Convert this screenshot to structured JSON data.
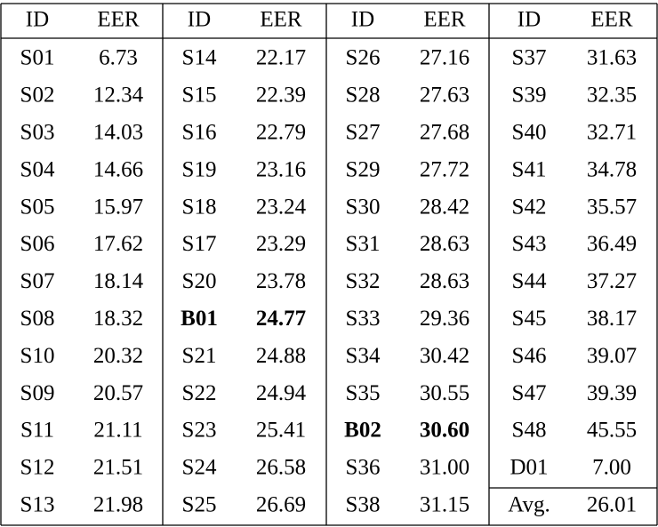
{
  "table": {
    "header": [
      "ID",
      "EER",
      "ID",
      "EER",
      "ID",
      "EER",
      "ID",
      "EER"
    ],
    "rows": [
      [
        "S01",
        "6.73",
        "S14",
        "22.17",
        "S26",
        "27.16",
        "S37",
        "31.63"
      ],
      [
        "S02",
        "12.34",
        "S15",
        "22.39",
        "S28",
        "27.63",
        "S39",
        "32.35"
      ],
      [
        "S03",
        "14.03",
        "S16",
        "22.79",
        "S27",
        "27.68",
        "S40",
        "32.71"
      ],
      [
        "S04",
        "14.66",
        "S19",
        "23.16",
        "S29",
        "27.72",
        "S41",
        "34.78"
      ],
      [
        "S05",
        "15.97",
        "S18",
        "23.24",
        "S30",
        "28.42",
        "S42",
        "35.57"
      ],
      [
        "S06",
        "17.62",
        "S17",
        "23.29",
        "S31",
        "28.63",
        "S43",
        "36.49"
      ],
      [
        "S07",
        "18.14",
        "S20",
        "23.78",
        "S32",
        "28.63",
        "S44",
        "37.27"
      ],
      [
        "S08",
        "18.32",
        "B01",
        "24.77",
        "S33",
        "29.36",
        "S45",
        "38.17"
      ],
      [
        "S10",
        "20.32",
        "S21",
        "24.88",
        "S34",
        "30.42",
        "S46",
        "39.07"
      ],
      [
        "S09",
        "20.57",
        "S22",
        "24.94",
        "S35",
        "30.55",
        "S47",
        "39.39"
      ],
      [
        "S11",
        "21.11",
        "S23",
        "25.41",
        "B02",
        "30.60",
        "S48",
        "45.55"
      ],
      [
        "S12",
        "21.51",
        "S24",
        "26.58",
        "S36",
        "31.00",
        "D01",
        "7.00"
      ],
      [
        "S13",
        "21.98",
        "S25",
        "26.69",
        "S38",
        "31.15",
        "Avg.",
        "26.01"
      ]
    ],
    "bold": [
      [
        7,
        2
      ],
      [
        7,
        3
      ],
      [
        10,
        4
      ],
      [
        10,
        5
      ]
    ]
  }
}
